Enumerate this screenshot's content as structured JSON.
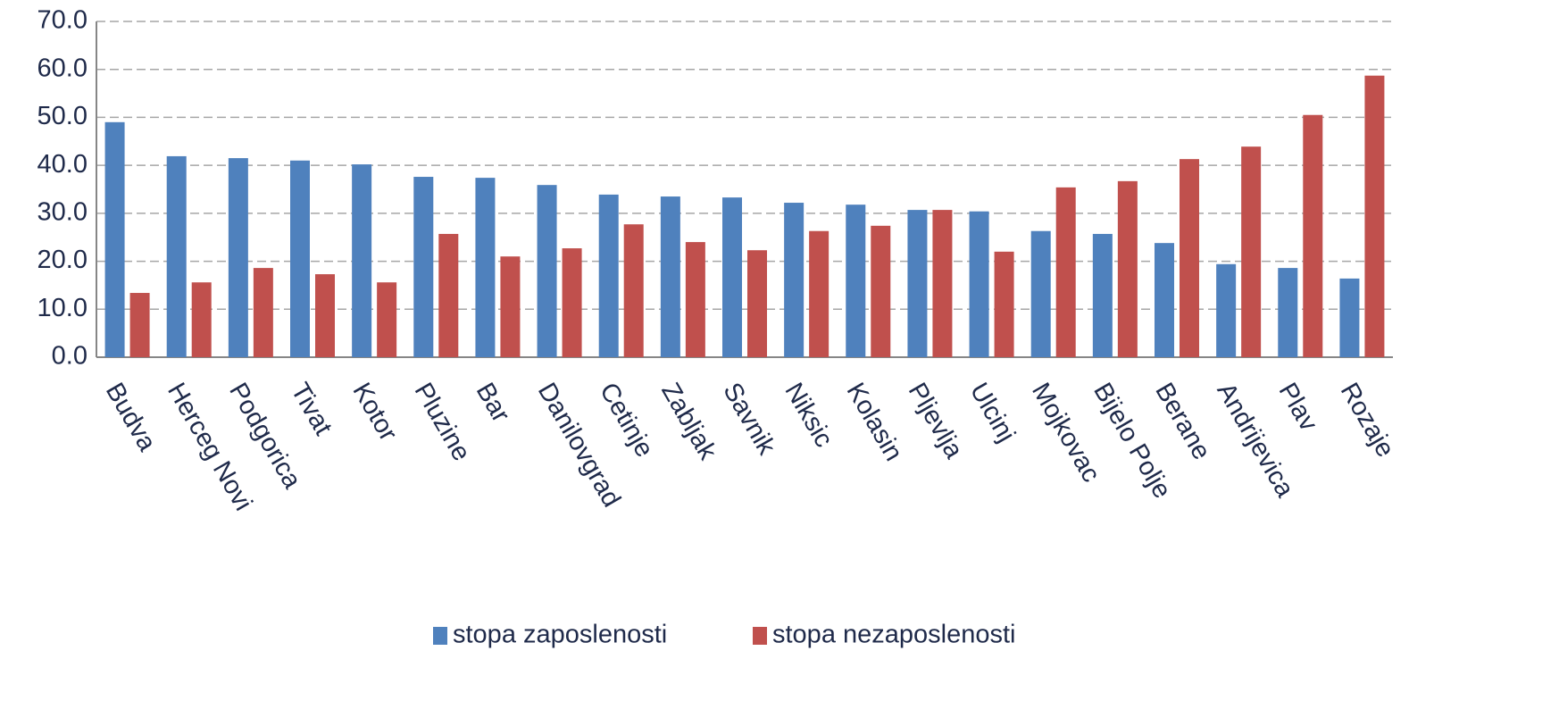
{
  "chart_data": {
    "type": "bar",
    "categories": [
      "Budva",
      "Herceg Novi",
      "Podgorica",
      "Tivat",
      "Kotor",
      "Pluzine",
      "Bar",
      "Danilovgrad",
      "Cetinje",
      "Zabljak",
      "Savnik",
      "Niksic",
      "Kolasin",
      "Pljevlja",
      "Ulcinj",
      "Mojkovac",
      "Bijelo Polje",
      "Berane",
      "Andrijevica",
      "Plav",
      "Rozaje"
    ],
    "series": [
      {
        "name": "stopa zaposlenosti",
        "color": "#4f81bd",
        "values": [
          49.0,
          41.9,
          41.5,
          41.0,
          40.2,
          37.6,
          37.4,
          35.9,
          33.9,
          33.5,
          33.3,
          32.2,
          31.8,
          30.7,
          30.4,
          26.3,
          25.7,
          23.8,
          19.4,
          18.6,
          16.4
        ]
      },
      {
        "name": "stopa nezaposlenosti",
        "color": "#c0504d",
        "values": [
          13.4,
          15.6,
          18.6,
          17.3,
          15.6,
          25.7,
          21.0,
          22.7,
          27.7,
          24.0,
          22.3,
          26.3,
          27.4,
          30.7,
          22.0,
          35.4,
          36.7,
          41.3,
          43.9,
          50.5,
          58.7
        ]
      }
    ],
    "ylim": [
      0,
      70
    ],
    "yticks": [
      {
        "value": 0,
        "label": "0.0"
      },
      {
        "value": 10,
        "label": "10.0"
      },
      {
        "value": 20,
        "label": "20.0"
      },
      {
        "value": 30,
        "label": "30.0"
      },
      {
        "value": 40,
        "label": "40.0"
      },
      {
        "value": 50,
        "label": "50.0"
      },
      {
        "value": 60,
        "label": "60.0"
      },
      {
        "value": 70,
        "label": "70.0"
      }
    ],
    "grid": true,
    "legend": "bottom"
  }
}
